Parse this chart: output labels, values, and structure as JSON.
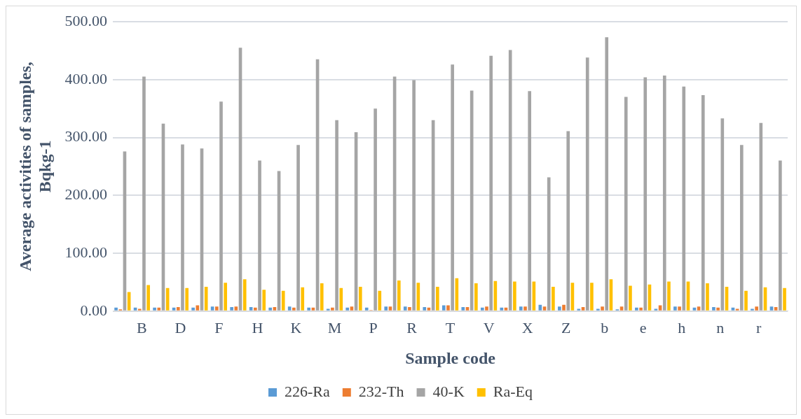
{
  "chart_data": {
    "type": "bar",
    "xlabel": "Sample code",
    "ylabel": "Average activities of samples, Bqkg-1",
    "categories": [
      null,
      "B",
      null,
      "D",
      null,
      "F",
      null,
      "H",
      null,
      "K",
      null,
      "M",
      null,
      "P",
      null,
      "R",
      null,
      "T",
      null,
      "V",
      null,
      "X",
      null,
      "Z",
      null,
      "b",
      null,
      "e",
      null,
      "h",
      null,
      "n",
      null,
      "r",
      null
    ],
    "series": [
      {
        "name": "226-Ra",
        "color": "#5b9bd5",
        "values": [
          6,
          6,
          6,
          6,
          6,
          8,
          7,
          7,
          6,
          8,
          6,
          4,
          6,
          6,
          8,
          8,
          7,
          10,
          7,
          6,
          6,
          8,
          11,
          8,
          4,
          4,
          3,
          6,
          4,
          8,
          6,
          7,
          6,
          4,
          8
        ]
      },
      {
        "name": "232-Th",
        "color": "#ed7d31",
        "values": [
          3,
          4,
          6,
          7,
          10,
          8,
          8,
          6,
          7,
          6,
          6,
          6,
          8,
          2,
          8,
          7,
          6,
          10,
          7,
          8,
          6,
          8,
          8,
          11,
          7,
          8,
          8,
          6,
          10,
          8,
          8,
          6,
          4,
          8,
          7
        ]
      },
      {
        "name": "40-K",
        "color": "#a5a5a5",
        "values": [
          276,
          405,
          324,
          288,
          281,
          362,
          455,
          260,
          242,
          287,
          435,
          330,
          309,
          350,
          405,
          399,
          330,
          426,
          381,
          441,
          451,
          380,
          231,
          311,
          438,
          473,
          370,
          404,
          407,
          388,
          373,
          333,
          287,
          325,
          260
        ]
      },
      {
        "name": "Ra-Eq",
        "color": "#ffc000",
        "values": [
          33,
          45,
          40,
          40,
          42,
          49,
          55,
          37,
          35,
          41,
          48,
          40,
          42,
          35,
          53,
          49,
          42,
          57,
          48,
          52,
          51,
          51,
          42,
          49,
          49,
          55,
          44,
          46,
          51,
          51,
          48,
          42,
          35,
          41,
          40
        ]
      }
    ],
    "ylim": [
      0,
      500
    ],
    "yticks": [
      {
        "value": 0,
        "label": "0.00"
      },
      {
        "value": 100,
        "label": "100.00"
      },
      {
        "value": 200,
        "label": "200.00"
      },
      {
        "value": 300,
        "label": "300.00"
      },
      {
        "value": 400,
        "label": "400.00"
      },
      {
        "value": 500,
        "label": "500.00"
      }
    ],
    "grid": "y",
    "legend": "bottom"
  }
}
